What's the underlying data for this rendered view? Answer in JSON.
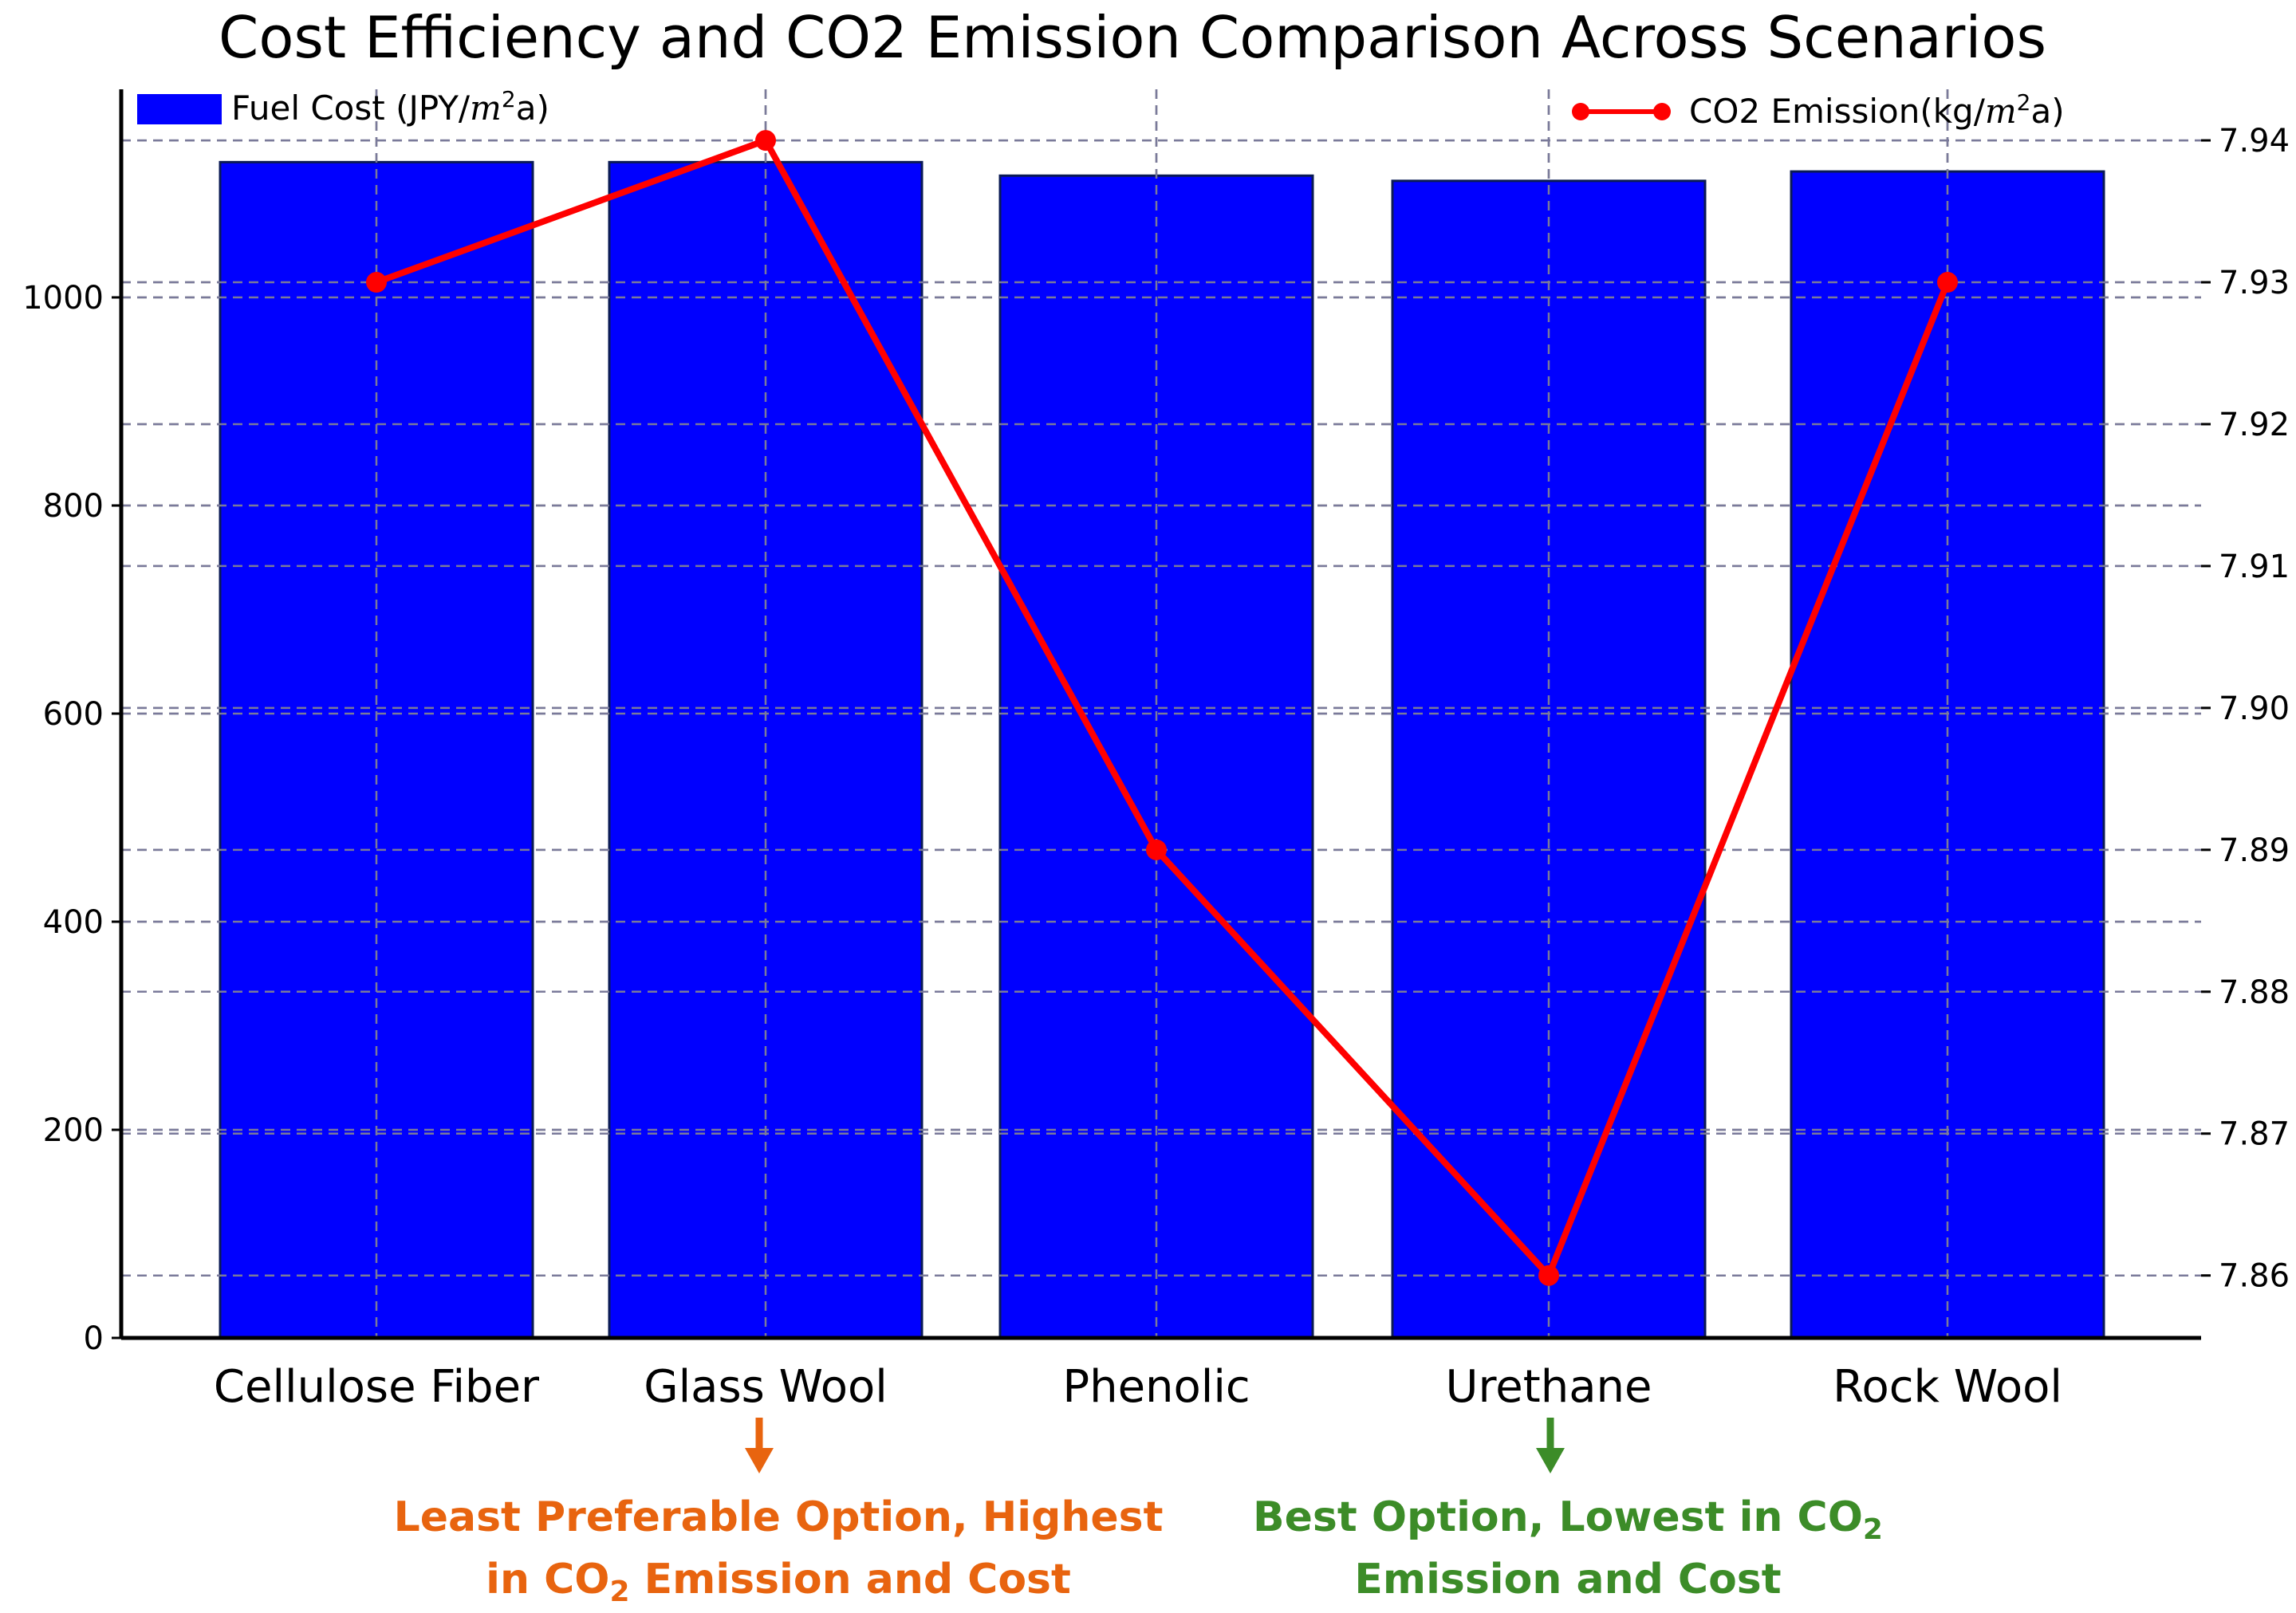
{
  "chart_data": {
    "type": "bar",
    "title": "Cost Efficiency and CO2 Emission Comparison Across Scenarios",
    "categories": [
      "Cellulose Fiber",
      "Glass Wool",
      "Phenolic",
      "Urethane",
      "Rock Wool"
    ],
    "series": [
      {
        "name": "Fuel Cost",
        "legend_label": "Fuel Cost (JPY/",
        "legend_unit_var": "m",
        "legend_unit_exp": "2",
        "legend_unit_tail": "a)",
        "type": "bar",
        "axis": "left",
        "color": "#0000ff",
        "values": [
          1130,
          1130,
          1117,
          1112,
          1121
        ]
      },
      {
        "name": "CO2 Emission",
        "legend_label": "CO2 Emission(kg/",
        "legend_unit_var": "m",
        "legend_unit_exp": "2",
        "legend_unit_tail": "a)",
        "type": "line",
        "axis": "right",
        "color": "#ff0000",
        "values": [
          7.93,
          7.94,
          7.89,
          7.86,
          7.93
        ]
      }
    ],
    "left_axis": {
      "ylim": [
        0,
        1200
      ],
      "ticks": [
        0,
        200,
        400,
        600,
        800,
        1000
      ],
      "tick_labels": [
        "0",
        "200",
        "400",
        "600",
        "800",
        "1000"
      ]
    },
    "right_axis": {
      "ylim": [
        7.8556,
        7.9436
      ],
      "ticks": [
        7.86,
        7.87,
        7.88,
        7.89,
        7.9,
        7.91,
        7.92,
        7.93,
        7.94
      ],
      "tick_labels": [
        "7.86",
        "7.87",
        "7.88",
        "7.89",
        "7.90",
        "7.91",
        "7.92",
        "7.93",
        "7.94"
      ]
    },
    "grid": true,
    "legend_placement": [
      "top-left",
      "top-right"
    ],
    "annotations": [
      {
        "target": "Glass Wool",
        "color": "#e8640f",
        "line1": "Least Preferable Option, Highest",
        "line2_pre": "in CO",
        "line2_sub": "2",
        "line2_post": " Emission and Cost"
      },
      {
        "target": "Urethane",
        "color": "#3c8c28",
        "line1_pre": "Best Option, Lowest in CO",
        "line1_sub": "2",
        "line2": "Emission and Cost"
      }
    ]
  }
}
